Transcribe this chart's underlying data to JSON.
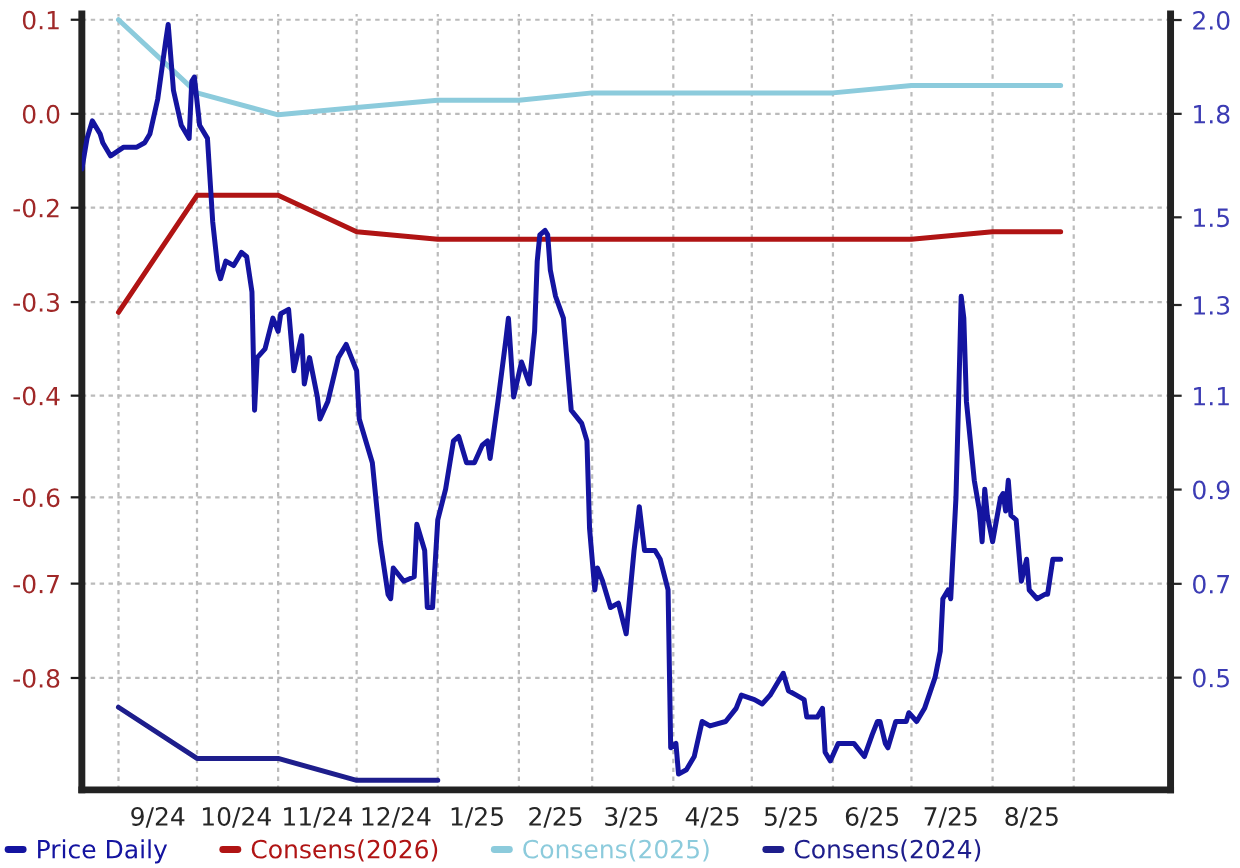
{
  "chart_data": {
    "type": "line",
    "xlim": [
      "2024-08-18",
      "2025-10-08"
    ],
    "xticks": [
      {
        "value": "2024-09-01",
        "label": null
      },
      {
        "value": "2024-09-16",
        "label": "9/24"
      },
      {
        "value": "2024-10-01",
        "label": null
      },
      {
        "value": "2024-10-16",
        "label": "10/24"
      },
      {
        "value": "2024-11-01",
        "label": null
      },
      {
        "value": "2024-11-16",
        "label": "11/24"
      },
      {
        "value": "2024-12-01",
        "label": null
      },
      {
        "value": "2024-12-16",
        "label": "12/24"
      },
      {
        "value": "2025-01-01",
        "label": null
      },
      {
        "value": "2025-01-16",
        "label": "1/25"
      },
      {
        "value": "2025-02-01",
        "label": null
      },
      {
        "value": "2025-02-15",
        "label": "2/25"
      },
      {
        "value": "2025-03-01",
        "label": null
      },
      {
        "value": "2025-03-16",
        "label": "3/25"
      },
      {
        "value": "2025-04-01",
        "label": null
      },
      {
        "value": "2025-04-16",
        "label": "4/25"
      },
      {
        "value": "2025-05-01",
        "label": null
      },
      {
        "value": "2025-05-16",
        "label": "5/25"
      },
      {
        "value": "2025-06-01",
        "label": null
      },
      {
        "value": "2025-06-16",
        "label": "6/25"
      },
      {
        "value": "2025-07-01",
        "label": null
      },
      {
        "value": "2025-07-16",
        "label": "7/25"
      },
      {
        "value": "2025-08-01",
        "label": null
      },
      {
        "value": "2025-08-16",
        "label": "8/25"
      },
      {
        "value": "2025-09-01",
        "label": null
      }
    ],
    "ylim": [
      -0.953,
      0.108
    ],
    "yticks": [
      {
        "value": 0.1,
        "label": "0.1"
      },
      {
        "value": -0.0286,
        "label": "0.0"
      },
      {
        "value": -0.157,
        "label": "-0.2"
      },
      {
        "value": -0.286,
        "label": "-0.3"
      },
      {
        "value": -0.414,
        "label": "-0.4"
      },
      {
        "value": -0.553,
        "label": "-0.6"
      },
      {
        "value": -0.671,
        "label": "-0.7"
      },
      {
        "value": -0.8,
        "label": "-0.8"
      }
    ],
    "y2lim": [
      0.244,
      2.014
    ],
    "y2ticks": [
      {
        "value": 2.0,
        "label": "2.0"
      },
      {
        "value": 1.786,
        "label": "1.8"
      },
      {
        "value": 1.55,
        "label": "1.5"
      },
      {
        "value": 1.35,
        "label": "1.3"
      },
      {
        "value": 1.143,
        "label": "1.1"
      },
      {
        "value": 0.929,
        "label": "0.9"
      },
      {
        "value": 0.714,
        "label": "0.7"
      },
      {
        "value": 0.5,
        "label": "0.5"
      }
    ],
    "grid": true,
    "legend": "bottom",
    "line_style": "solid",
    "marker": "none",
    "series": [
      {
        "name": "Price Daily",
        "color": "#1414a0",
        "axis": "y2",
        "x": [
          "2024-08-18",
          "2024-08-20",
          "2024-08-22",
          "2024-08-25",
          "2024-08-26",
          "2024-08-29",
          "2024-09-03",
          "2024-09-08",
          "2024-09-11",
          "2024-09-13",
          "2024-09-16",
          "2024-09-19",
          "2024-09-20",
          "2024-09-22",
          "2024-09-25",
          "2024-09-28",
          "2024-09-29",
          "2024-09-30",
          "2024-10-02",
          "2024-10-05",
          "2024-10-07",
          "2024-10-09",
          "2024-10-10",
          "2024-10-12",
          "2024-10-15",
          "2024-10-18",
          "2024-10-20",
          "2024-10-22",
          "2024-10-23",
          "2024-10-24",
          "2024-10-27",
          "2024-10-30",
          "2024-11-01",
          "2024-11-02",
          "2024-11-05",
          "2024-11-07",
          "2024-11-10",
          "2024-11-11",
          "2024-11-13",
          "2024-11-16",
          "2024-11-17",
          "2024-11-20",
          "2024-11-24",
          "2024-11-27",
          "2024-11-29",
          "2024-12-01",
          "2024-12-02",
          "2024-12-05",
          "2024-12-07",
          "2024-12-10",
          "2024-12-13",
          "2024-12-14",
          "2024-12-15",
          "2024-12-19",
          "2024-12-23",
          "2024-12-24",
          "2024-12-27",
          "2024-12-28",
          "2024-12-30",
          "2025-01-01",
          "2025-01-04",
          "2025-01-07",
          "2025-01-09",
          "2025-01-12",
          "2025-01-15",
          "2025-01-18",
          "2025-01-20",
          "2025-01-21",
          "2025-01-24",
          "2025-01-27",
          "2025-01-28",
          "2025-01-30",
          "2025-02-02",
          "2025-02-05",
          "2025-02-07",
          "2025-02-08",
          "2025-02-09",
          "2025-02-11",
          "2025-02-12",
          "2025-02-13",
          "2025-02-15",
          "2025-02-18",
          "2025-02-21",
          "2025-02-25",
          "2025-02-27",
          "2025-02-28",
          "2025-03-02",
          "2025-03-03",
          "2025-03-05",
          "2025-03-08",
          "2025-03-11",
          "2025-03-14",
          "2025-03-17",
          "2025-03-19",
          "2025-03-21",
          "2025-03-25",
          "2025-03-27",
          "2025-03-30",
          "2025-03-31",
          "2025-04-02",
          "2025-04-03",
          "2025-04-06",
          "2025-04-09",
          "2025-04-12",
          "2025-04-15",
          "2025-04-21",
          "2025-04-25",
          "2025-04-27",
          "2025-05-02",
          "2025-05-05",
          "2025-05-08",
          "2025-05-13",
          "2025-05-15",
          "2025-05-18",
          "2025-05-21",
          "2025-05-22",
          "2025-05-26",
          "2025-05-28",
          "2025-05-29",
          "2025-05-31",
          "2025-06-03",
          "2025-06-06",
          "2025-06-09",
          "2025-06-13",
          "2025-06-16",
          "2025-06-18",
          "2025-06-19",
          "2025-06-21",
          "2025-06-22",
          "2025-06-25",
          "2025-06-29",
          "2025-06-30",
          "2025-07-03",
          "2025-07-06",
          "2025-07-10",
          "2025-07-12",
          "2025-07-13",
          "2025-07-15",
          "2025-07-16",
          "2025-07-18",
          "2025-07-19",
          "2025-07-20",
          "2025-07-21",
          "2025-07-22",
          "2025-07-25",
          "2025-07-27",
          "2025-07-28",
          "2025-07-29",
          "2025-07-30",
          "2025-08-01",
          "2025-08-04",
          "2025-08-05",
          "2025-08-06",
          "2025-08-07",
          "2025-08-08",
          "2025-08-10",
          "2025-08-12",
          "2025-08-14",
          "2025-08-15",
          "2025-08-18",
          "2025-08-21",
          "2025-08-22",
          "2025-08-24",
          "2025-08-27"
        ],
        "values": [
          1.66,
          1.73,
          1.77,
          1.74,
          1.72,
          1.69,
          1.71,
          1.71,
          1.72,
          1.74,
          1.82,
          1.95,
          1.99,
          1.84,
          1.76,
          1.73,
          1.86,
          1.87,
          1.76,
          1.73,
          1.54,
          1.43,
          1.41,
          1.45,
          1.44,
          1.47,
          1.46,
          1.38,
          1.11,
          1.23,
          1.25,
          1.32,
          1.29,
          1.33,
          1.34,
          1.2,
          1.28,
          1.17,
          1.23,
          1.14,
          1.09,
          1.13,
          1.23,
          1.26,
          1.23,
          1.2,
          1.09,
          1.03,
          0.99,
          0.81,
          0.69,
          0.68,
          0.75,
          0.72,
          0.73,
          0.85,
          0.79,
          0.66,
          0.66,
          0.86,
          0.93,
          1.04,
          1.05,
          0.99,
          0.99,
          1.03,
          1.04,
          1.0,
          1.13,
          1.27,
          1.32,
          1.14,
          1.22,
          1.17,
          1.29,
          1.45,
          1.51,
          1.52,
          1.51,
          1.43,
          1.37,
          1.32,
          1.11,
          1.08,
          1.04,
          0.84,
          0.7,
          0.75,
          0.72,
          0.66,
          0.67,
          0.6,
          0.79,
          0.89,
          0.79,
          0.79,
          0.77,
          0.7,
          0.34,
          0.35,
          0.28,
          0.29,
          0.32,
          0.4,
          0.39,
          0.4,
          0.43,
          0.46,
          0.45,
          0.44,
          0.46,
          0.51,
          0.47,
          0.46,
          0.45,
          0.41,
          0.41,
          0.43,
          0.33,
          0.31,
          0.35,
          0.35,
          0.35,
          0.32,
          0.37,
          0.4,
          0.4,
          0.35,
          0.34,
          0.4,
          0.4,
          0.42,
          0.4,
          0.43,
          0.5,
          0.56,
          0.68,
          0.7,
          0.68,
          0.91,
          1.13,
          1.37,
          1.32,
          1.13,
          0.95,
          0.88,
          0.81,
          0.93,
          0.87,
          0.81,
          0.91,
          0.92,
          0.88,
          0.95,
          0.87,
          0.86,
          0.72,
          0.77,
          0.7,
          0.68,
          0.69,
          0.69,
          0.77,
          0.77
        ]
      },
      {
        "name": "Consens(2026)",
        "color": "#b01414",
        "x": [
          "2024-09-01",
          "2024-10-01",
          "2024-11-01",
          "2024-12-01",
          "2025-01-01",
          "2025-02-01",
          "2025-03-01",
          "2025-04-01",
          "2025-05-01",
          "2025-06-01",
          "2025-07-01",
          "2025-08-01",
          "2025-08-27"
        ],
        "values": [
          -0.3,
          -0.14,
          -0.14,
          -0.19,
          -0.2,
          -0.2,
          -0.2,
          -0.2,
          -0.2,
          -0.2,
          -0.2,
          -0.19,
          -0.19
        ]
      },
      {
        "name": "Consens(2025)",
        "color": "#8ccbdc",
        "x": [
          "2024-09-01",
          "2024-10-01",
          "2024-11-01",
          "2024-12-01",
          "2025-01-01",
          "2025-02-01",
          "2025-03-01",
          "2025-04-01",
          "2025-05-01",
          "2025-06-01",
          "2025-07-01",
          "2025-08-01",
          "2025-08-27"
        ],
        "values": [
          0.1,
          0.0,
          -0.03,
          -0.02,
          -0.01,
          -0.01,
          0.0,
          0.0,
          0.0,
          0.0,
          0.01,
          0.01,
          0.01
        ]
      },
      {
        "name": "Consens(2024)",
        "color": "#1e1e8c",
        "x": [
          "2024-09-01",
          "2024-10-01",
          "2024-11-01",
          "2024-12-01",
          "2025-01-01"
        ],
        "values": [
          -0.84,
          -0.91,
          -0.91,
          -0.94,
          -0.94
        ]
      }
    ]
  }
}
